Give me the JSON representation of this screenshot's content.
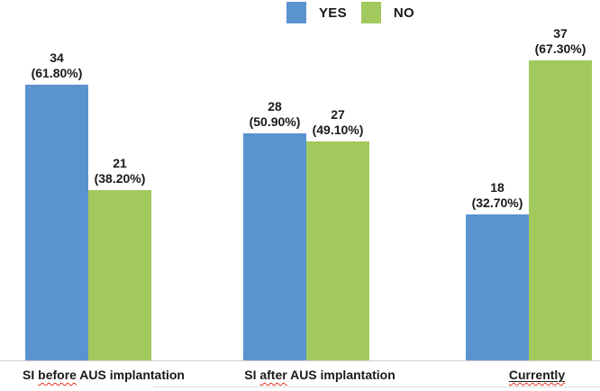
{
  "chart_data": {
    "type": "bar",
    "title": "",
    "xlabel": "",
    "ylabel": "",
    "grid": false,
    "legend_position": "top-center",
    "value_axis_hidden": true,
    "ylim": [
      0,
      40
    ],
    "categories": [
      {
        "label": "SI before AUS implantation",
        "squiggle_word": "before",
        "underline": false
      },
      {
        "label": "SI after AUS implantation",
        "squiggle_word": "after",
        "underline": false
      },
      {
        "label": "Currently",
        "squiggle_word": "Currently",
        "underline": true
      }
    ],
    "series": [
      {
        "name": "YES",
        "color": "#5b93d1",
        "values": [
          34,
          28,
          18
        ],
        "percent_labels": [
          "(61.80%)",
          "(50.90%)",
          "(32.70%)"
        ]
      },
      {
        "name": "NO",
        "color": "#a2c95e",
        "values": [
          21,
          27,
          37
        ],
        "percent_labels": [
          "(38.20%)",
          "(49.10%)",
          "(67.30%)"
        ]
      }
    ]
  },
  "layout_colors": {
    "axis_line": "#cfcfcf",
    "label_text": "#1a1a1a",
    "squiggle": "#e0321f"
  }
}
